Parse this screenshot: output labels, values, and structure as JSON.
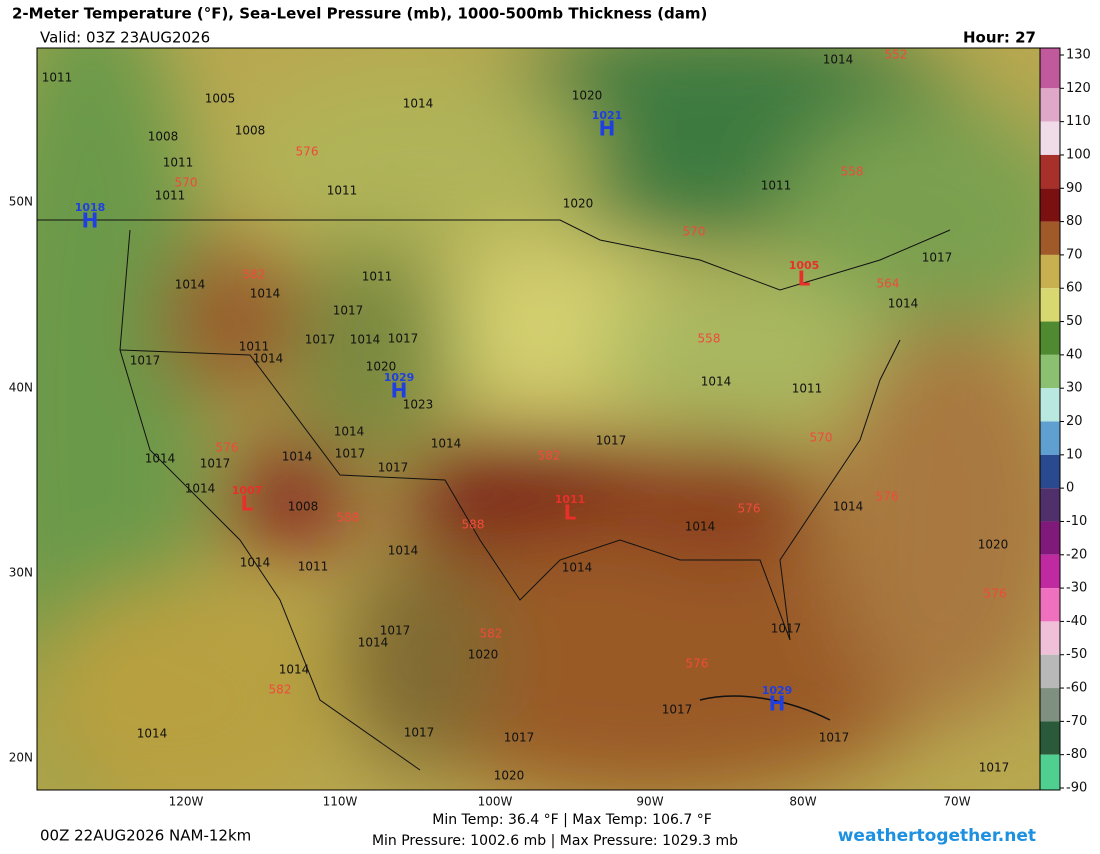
{
  "header": {
    "title": "2-Meter Temperature (°F), Sea-Level Pressure (mb), 1000-500mb Thickness (dam)",
    "valid": "Valid: 03Z 23AUG2026",
    "hour": "Hour: 27"
  },
  "map": {
    "lat_labels": [
      "50N",
      "40N",
      "30N",
      "20N"
    ],
    "lon_labels": [
      "120W",
      "110W",
      "100W",
      "90W",
      "80W",
      "70W"
    ],
    "pressure_labels": [
      "1011",
      "1005",
      "1014",
      "1020",
      "1014",
      "1008",
      "1008",
      "1011",
      "1011",
      "1011",
      "1020",
      "1011",
      "1011",
      "1014",
      "1014",
      "1017",
      "1017",
      "1014",
      "1017",
      "1011",
      "1014",
      "1017",
      "1020",
      "1014",
      "1011",
      "1023",
      "1014",
      "1014",
      "1017",
      "1014",
      "1017",
      "1014",
      "1017",
      "1017",
      "1014",
      "1008",
      "1014",
      "1014",
      "1014",
      "1011",
      "1014",
      "1014",
      "1020",
      "1017",
      "1014",
      "1017",
      "1020",
      "1014",
      "1017",
      "1014",
      "1017",
      "1017",
      "1017",
      "1017",
      "1020",
      "1014",
      "1017"
    ],
    "thickness_labels": [
      "552",
      "576",
      "570",
      "558",
      "582",
      "570",
      "564",
      "558",
      "570",
      "576",
      "582",
      "588",
      "588",
      "576",
      "576",
      "582",
      "576",
      "576",
      "582"
    ],
    "centers": [
      {
        "symbol": "H",
        "value": "1021"
      },
      {
        "symbol": "H",
        "value": "1018"
      },
      {
        "symbol": "H",
        "value": "1029"
      },
      {
        "symbol": "L",
        "value": "1005"
      },
      {
        "symbol": "L",
        "value": "1007"
      },
      {
        "symbol": "L",
        "value": "1011"
      },
      {
        "symbol": "H",
        "value": "1029"
      }
    ],
    "high_color": "#1f3fe0",
    "low_color": "#e8302a",
    "thickness_color": "#f04a3a"
  },
  "colorbar": {
    "ticks": [
      130,
      120,
      110,
      100,
      90,
      80,
      70,
      60,
      50,
      40,
      30,
      20,
      10,
      0,
      -10,
      -20,
      -30,
      -40,
      -50,
      -60,
      -70,
      -80,
      -90
    ],
    "colors": [
      "#c05a9c",
      "#e0a8c8",
      "#f0dce8",
      "#a8302a",
      "#7a1010",
      "#a05a2a",
      "#c8b050",
      "#d8d870",
      "#508a30",
      "#8ac070",
      "#b8e8e0",
      "#60a0d0",
      "#2a4a90",
      "#50306a",
      "#801a7a",
      "#c02aa0",
      "#f070c0",
      "#f0c0d8",
      "#b8b8b8",
      "#809080",
      "#2a5a3a",
      "#50d090"
    ]
  },
  "footer": {
    "run": "00Z 22AUG2026 NAM-12km",
    "temps": "Min Temp:  36.4 °F | Max Temp: 106.7 °F",
    "pressure": "Min Pressure: 1002.6 mb | Max Pressure: 1029.3 mb",
    "site": "weathertogether.net"
  }
}
